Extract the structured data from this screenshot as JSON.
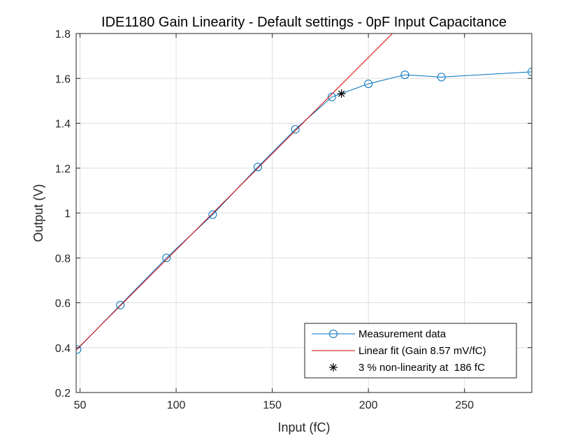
{
  "chart_data": {
    "type": "line",
    "title": "IDE1180 Gain Linearity - Default settings - 0pF Input Capacitance",
    "xlabel": "Input (fC)",
    "ylabel": "Output (V)",
    "xlim": [
      48,
      285
    ],
    "ylim": [
      0.2,
      1.8
    ],
    "xticks": [
      50,
      100,
      150,
      200,
      250
    ],
    "xtick_labels": [
      "50",
      "100",
      "150",
      "200",
      "250"
    ],
    "yticks": [
      0.2,
      0.4,
      0.6,
      0.8,
      1.0,
      1.2,
      1.4,
      1.6,
      1.8
    ],
    "ytick_labels": [
      "0.2",
      "0.4",
      "0.6",
      "0.8",
      "1",
      "1.2",
      "1.4",
      "1.6",
      "1.8"
    ],
    "grid": true,
    "legend_position": "bottom-right",
    "series": [
      {
        "name": "Measurement data",
        "kind": "line-marker",
        "marker": "circle",
        "color": "#0072BD",
        "x": [
          48.5,
          71,
          95,
          119,
          142.5,
          162,
          181,
          200,
          219,
          238,
          285
        ],
        "y": [
          0.392,
          0.59,
          0.8,
          0.993,
          1.205,
          1.373,
          1.517,
          1.576,
          1.616,
          1.606,
          1.629
        ]
      },
      {
        "name": "Linear fit (Gain 8.57 mV/fC)",
        "kind": "line",
        "color": "#D00000",
        "x": [
          48,
          214
        ],
        "y": [
          0.39,
          1.813
        ]
      },
      {
        "name": "3 % non-linearity at  186 fC",
        "kind": "marker",
        "marker": "asterisk",
        "color": "#000000",
        "x": [
          186
        ],
        "y": [
          1.532
        ]
      }
    ]
  }
}
